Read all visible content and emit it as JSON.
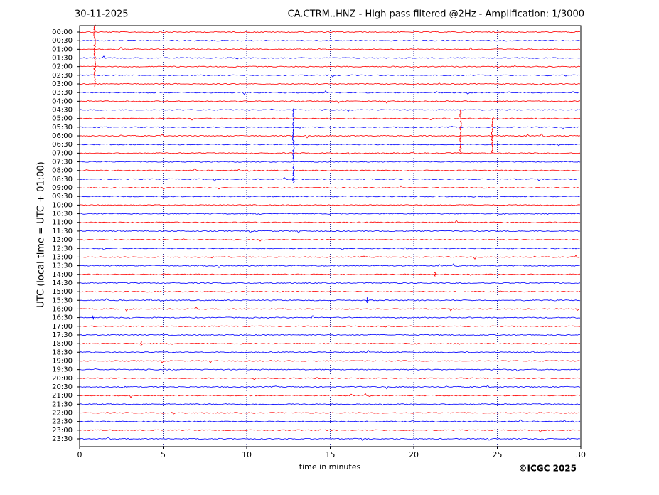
{
  "chart_data": {
    "type": "helicorder",
    "title_left": "30-11-2025",
    "title": "CA.CTRM..HNZ - High pass filtered @2Hz - Amplification: 1/3000",
    "ylabel": "UTC (local time = UTC + 01:00)",
    "xlabel": "time in minutes",
    "copyright": "©ICGC 2025",
    "categories": [
      "00:00",
      "00:30",
      "01:00",
      "01:30",
      "02:00",
      "02:30",
      "03:00",
      "03:30",
      "04:00",
      "04:30",
      "05:00",
      "05:30",
      "06:00",
      "06:30",
      "07:00",
      "07:30",
      "08:00",
      "08:30",
      "09:00",
      "09:30",
      "10:00",
      "10:30",
      "11:00",
      "11:30",
      "12:00",
      "12:30",
      "13:00",
      "13:30",
      "14:00",
      "14:30",
      "15:00",
      "15:30",
      "16:00",
      "16:30",
      "17:00",
      "17:30",
      "18:00",
      "18:30",
      "19:00",
      "19:30",
      "20:00",
      "20:30",
      "21:00",
      "21:30",
      "22:00",
      "22:30",
      "23:00",
      "23:30"
    ],
    "colors": [
      "#ff0000",
      "#0000ff"
    ],
    "xlim": [
      0,
      30
    ],
    "xticks": [
      0,
      5,
      10,
      15,
      20,
      25,
      30
    ],
    "grid": true,
    "events": [
      {
        "row": 2,
        "x": 0.9,
        "span": [
          -0.8,
          6.3
        ]
      },
      {
        "row": 13,
        "x": 12.8,
        "span": [
          8.9,
          17.5
        ]
      },
      {
        "row": 10,
        "x": 22.8,
        "span": [
          9.0,
          14.0
        ]
      },
      {
        "row": 12,
        "x": 24.7,
        "span": [
          10.0,
          14.0
        ]
      },
      {
        "row": 28,
        "x": 21.3,
        "span": [
          27.8,
          28.2
        ]
      },
      {
        "row": 31,
        "x": 17.2,
        "span": [
          30.7,
          31.3
        ]
      },
      {
        "row": 33,
        "x": 0.8,
        "span": [
          32.8,
          33.2
        ]
      },
      {
        "row": 36,
        "x": 3.7,
        "span": [
          35.7,
          36.3
        ]
      }
    ]
  }
}
